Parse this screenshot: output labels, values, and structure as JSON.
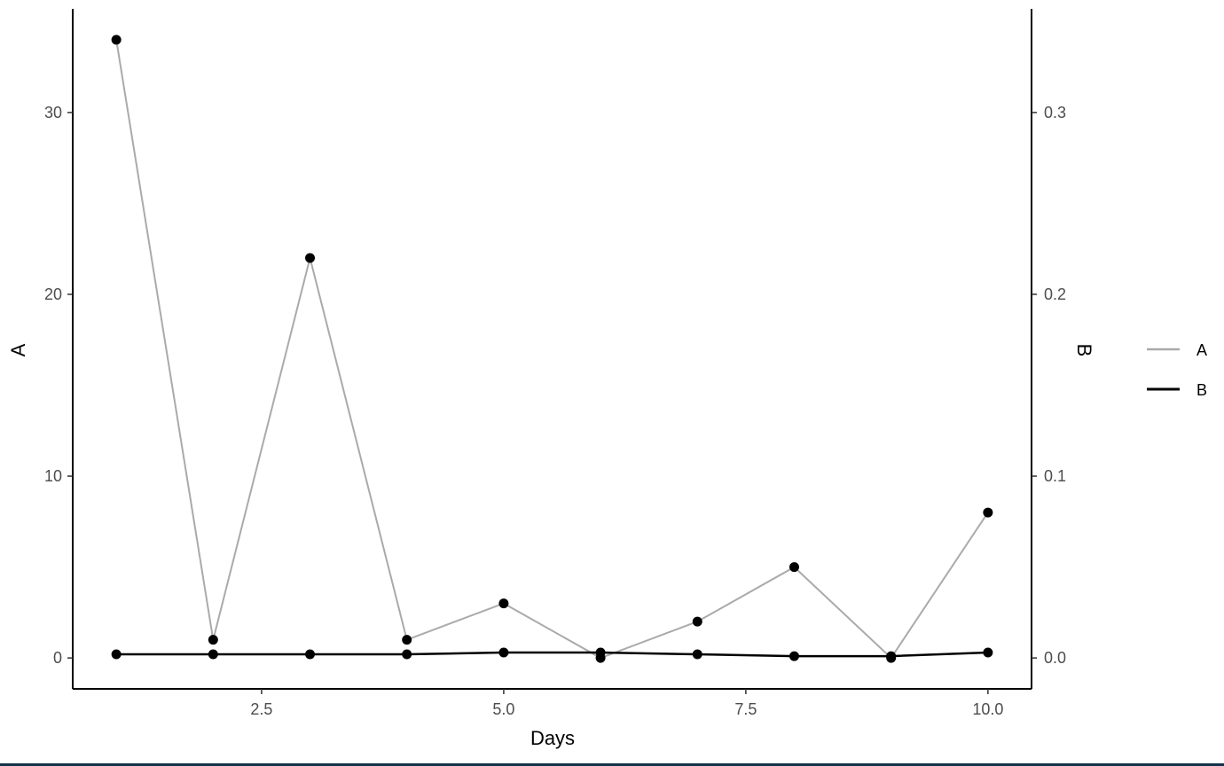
{
  "chart_data": {
    "type": "line",
    "xlabel": "Days",
    "ylabel_left": "A",
    "ylabel_right": "B",
    "xlim": [
      0.55,
      10.45
    ],
    "ylim_left": [
      -1.7,
      35.7
    ],
    "ylim_right": [
      -0.017,
      0.357
    ],
    "x_ticks": [
      2.5,
      5.0,
      7.5,
      10.0
    ],
    "x_tick_labels": [
      "2.5",
      "5.0",
      "7.5",
      "10.0"
    ],
    "y_left_ticks": [
      0,
      10,
      20,
      30
    ],
    "y_left_tick_labels": [
      "0",
      "10",
      "20",
      "30"
    ],
    "y_right_ticks": [
      0.0,
      0.1,
      0.2,
      0.3
    ],
    "y_right_tick_labels": [
      "0.0",
      "0.1",
      "0.2",
      "0.3"
    ],
    "grid": false,
    "legend_position": "right",
    "x": [
      1,
      2,
      3,
      4,
      5,
      6,
      7,
      8,
      9,
      10
    ],
    "series": [
      {
        "name": "A",
        "axis": "left",
        "color": "#aaaaaa",
        "values": [
          34,
          1,
          22,
          1,
          3,
          0,
          2,
          5,
          0,
          8
        ]
      },
      {
        "name": "B",
        "axis": "right",
        "color": "#000000",
        "values": [
          0.002,
          0.002,
          0.002,
          0.002,
          0.003,
          0.003,
          0.002,
          0.001,
          0.001,
          0.003
        ]
      }
    ],
    "point_color": "#000000"
  }
}
